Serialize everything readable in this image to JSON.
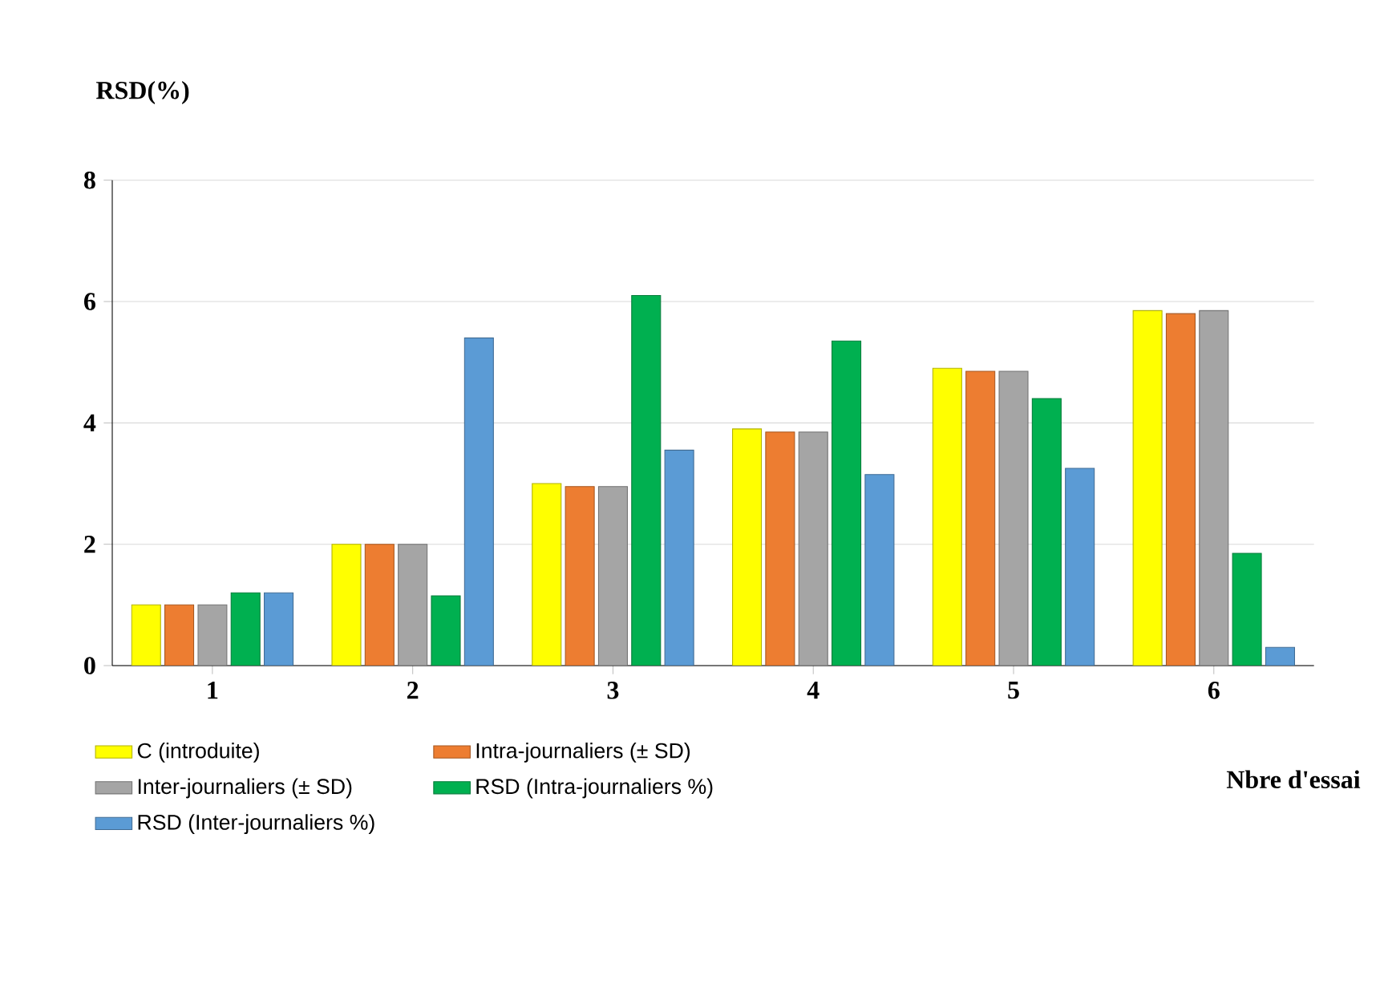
{
  "chart_data": {
    "type": "bar",
    "ylabel": "RSD(%)",
    "xlabel": "Nbre d'essai",
    "categories": [
      "1",
      "2",
      "3",
      "4",
      "5",
      "6"
    ],
    "series": [
      {
        "name": "C (introduite)",
        "color": "#ffff00",
        "values": [
          1,
          2,
          3,
          3.9,
          4.9,
          5.85
        ]
      },
      {
        "name": "Intra-journaliers (± SD)",
        "color": "#ed7d31",
        "values": [
          1,
          2,
          2.95,
          3.85,
          4.85,
          5.8
        ]
      },
      {
        "name": "Inter-journaliers (± SD)",
        "color": "#a5a5a5",
        "values": [
          1,
          2,
          2.95,
          3.85,
          4.85,
          5.85
        ]
      },
      {
        "name": "RSD (Intra-journaliers %)",
        "color": "#00b050",
        "values": [
          1.2,
          1.15,
          6.1,
          5.35,
          4.4,
          1.85
        ]
      },
      {
        "name": "RSD (Inter-journaliers %)",
        "color": "#5b9bd5",
        "values": [
          1.2,
          5.4,
          3.55,
          3.15,
          3.25,
          0.3
        ]
      }
    ],
    "ylim": [
      0,
      8
    ],
    "yticks": [
      0,
      2,
      4,
      6,
      8
    ],
    "grid": "y",
    "legend": "bottom left"
  }
}
